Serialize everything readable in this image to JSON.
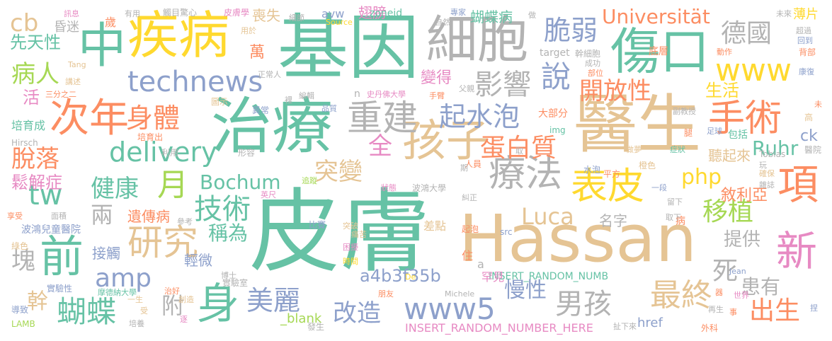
{
  "words": [
    {
      "text": "皮膚",
      "color": "#66c2a5"
    },
    {
      "text": "Hassan",
      "color": "#e5c494"
    },
    {
      "text": "基因",
      "color": "#66c2a5"
    },
    {
      "text": "治療",
      "color": "#66c2a5"
    },
    {
      "text": "醫生",
      "color": "#e5c494"
    },
    {
      "text": "細胞",
      "color": "#b3b3b3"
    },
    {
      "text": "疾病",
      "color": "#ffd92f"
    },
    {
      "text": "傷口",
      "color": "#66c2a5"
    },
    {
      "text": "中",
      "color": "#66c2a5"
    },
    {
      "text": "孩子",
      "color": "#e5c494"
    },
    {
      "text": "重建",
      "color": "#b3b3b3"
    },
    {
      "text": "療法",
      "color": "#b3b3b3"
    },
    {
      "text": "手術",
      "color": "#fc8d62"
    },
    {
      "text": "表皮",
      "color": "#ffd92f"
    },
    {
      "text": "次年",
      "color": "#fc8d62"
    },
    {
      "text": "身",
      "color": "#66c2a5"
    },
    {
      "text": "研究",
      "color": "#e5c494"
    },
    {
      "text": "項",
      "color": "#fc8d62"
    },
    {
      "text": "前",
      "color": "#66c2a5"
    },
    {
      "text": "新",
      "color": "#e78ac3"
    },
    {
      "text": "www",
      "color": "#ffd92f"
    },
    {
      "text": "technews",
      "color": "#8da0cb"
    },
    {
      "text": "delivery",
      "color": "#66c2a5"
    },
    {
      "text": "身體",
      "color": "#fc8d62"
    },
    {
      "text": "最終",
      "color": "#e5c494"
    },
    {
      "text": "起水泡",
      "color": "#8da0cb"
    },
    {
      "text": "蛋白質",
      "color": "#fc8d62"
    },
    {
      "text": "影響",
      "color": "#b3b3b3"
    },
    {
      "text": "說",
      "color": "#8da0cb"
    },
    {
      "text": "脆弱",
      "color": "#8da0cb"
    },
    {
      "text": "德國",
      "color": "#b3b3b3"
    },
    {
      "text": "蝴蝶",
      "color": "#66c2a5"
    },
    {
      "text": "美麗",
      "color": "#8da0cb"
    },
    {
      "text": "www5",
      "color": "#8da0cb"
    },
    {
      "text": "男孩",
      "color": "#b3b3b3"
    },
    {
      "text": "出生",
      "color": "#fc8d62"
    },
    {
      "text": "移植",
      "color": "#a6d854"
    },
    {
      "text": "技術",
      "color": "#66c2a5"
    },
    {
      "text": "月",
      "color": "#a6d854"
    },
    {
      "text": "健康",
      "color": "#66c2a5"
    },
    {
      "text": "病人",
      "color": "#a6d854"
    },
    {
      "text": "脫落",
      "color": "#fc8d62"
    },
    {
      "text": "amp",
      "color": "#8da0cb"
    },
    {
      "text": "改造",
      "color": "#8da0cb"
    },
    {
      "text": "開放性",
      "color": "#fc8d62"
    },
    {
      "text": "Universität",
      "color": "#fc8d62"
    },
    {
      "text": "Bochum",
      "color": "#66c2a5"
    },
    {
      "text": "Luca",
      "color": "#e5c494"
    },
    {
      "text": "php",
      "color": "#ffd92f"
    },
    {
      "text": "突變",
      "color": "#e5c494"
    },
    {
      "text": "Ruhr",
      "color": "#66c2a5"
    },
    {
      "text": "死",
      "color": "#b3b3b3"
    },
    {
      "text": "患有",
      "color": "#b3b3b3"
    },
    {
      "text": "慢性",
      "color": "#8da0cb"
    },
    {
      "text": "tw",
      "color": "#66c2a5"
    },
    {
      "text": "cb",
      "color": "#e5c494"
    },
    {
      "text": "全",
      "color": "#e78ac3"
    },
    {
      "text": "稱為",
      "color": "#66c2a5"
    },
    {
      "text": "附",
      "color": "#b3b3b3"
    },
    {
      "text": "鬆解症",
      "color": "#e78ac3"
    },
    {
      "text": "塊",
      "color": "#b3b3b3"
    },
    {
      "text": "兩",
      "color": "#b3b3b3"
    },
    {
      "text": "生活",
      "color": "#ffd92f"
    },
    {
      "text": "提供",
      "color": "#b3b3b3"
    },
    {
      "text": "先天性",
      "color": "#66c2a5"
    },
    {
      "text": "萬",
      "color": "#fc8d62"
    },
    {
      "text": "a4b3f35b",
      "color": "#8da0cb"
    },
    {
      "text": "蝴蝶病",
      "color": "#66c2a5"
    },
    {
      "text": "翅膀",
      "color": "#e78ac3"
    },
    {
      "text": "喪失",
      "color": "#e5c494"
    },
    {
      "text": "昏迷",
      "color": "#b3b3b3"
    },
    {
      "text": "遺傳病",
      "color": "#fc8d62"
    },
    {
      "text": "名字",
      "color": "#b3b3b3"
    },
    {
      "text": "敘利亞",
      "color": "#fc8d62"
    },
    {
      "text": "聽起來",
      "color": "#e5c494"
    },
    {
      "text": "接觸",
      "color": "#8da0cb"
    },
    {
      "text": "輕微",
      "color": "#8da0cb"
    },
    {
      "text": "幹",
      "color": "#e5c494"
    },
    {
      "text": "活",
      "color": "#e78ac3"
    },
    {
      "text": "變得",
      "color": "#e78ac3"
    },
    {
      "text": "_blank",
      "color": "#a6d854"
    },
    {
      "text": "INSERT_RANDOM_NUMBER_HERE",
      "color": "#e78ac3"
    },
    {
      "text": "INSERT_RANDOM_NUMB",
      "color": "#66c2a5"
    },
    {
      "text": "href",
      "color": "#8da0cb"
    },
    {
      "text": "ck",
      "color": "#8da0cb"
    },
    {
      "text": "罕見",
      "color": "#e78ac3"
    },
    {
      "text": "住",
      "color": "#fc8d62"
    },
    {
      "text": "差點",
      "color": "#e5c494"
    },
    {
      "text": "zoneid",
      "color": "#66c2a5"
    },
    {
      "text": "avw",
      "color": "#8da0cb"
    },
    {
      "text": "薄片",
      "color": "#ffd92f"
    },
    {
      "text": "底層",
      "color": "#fc8d62"
    },
    {
      "text": "大部分",
      "color": "#fc8d62"
    },
    {
      "text": "波鴻兒童醫院",
      "color": "#8da0cb"
    },
    {
      "text": "培育成",
      "color": "#66c2a5"
    },
    {
      "text": "實驗室",
      "color": "#b3b3b3"
    },
    {
      "text": "病",
      "color": "#fc8d62"
    },
    {
      "text": "橙色",
      "color": "#e5c494"
    },
    {
      "text": "Tobias",
      "color": "#b3b3b3"
    },
    {
      "text": "包括",
      "color": "#66c2a5"
    },
    {
      "text": "腿",
      "color": "#fc8d62"
    },
    {
      "text": "歲",
      "color": "#fc8d62"
    },
    {
      "text": "幹細胞",
      "color": "#b3b3b3"
    },
    {
      "text": "target",
      "color": "#b3b3b3"
    },
    {
      "text": "水泡",
      "color": "#8da0cb"
    },
    {
      "text": "人員",
      "color": "#fc8d62"
    },
    {
      "text": "img",
      "color": "#66c2a5"
    },
    {
      "text": "波鴻大學",
      "color": "#b3b3b3"
    },
    {
      "text": "三分之二",
      "color": "#fc8d62"
    },
    {
      "text": "史丹佛大學",
      "color": "#e78ac3"
    },
    {
      "text": "培育出",
      "color": "#fc8d62"
    },
    {
      "text": "利用",
      "color": "#b3b3b3"
    },
    {
      "text": "異常",
      "color": "#8da0cb"
    },
    {
      "text": "n",
      "color": "#b3b3b3"
    },
    {
      "text": "a",
      "color": "#b3b3b3"
    },
    {
      "text": "src",
      "color": "#8da0cb"
    },
    {
      "text": "實驗性",
      "color": "#8da0cb"
    },
    {
      "text": "摩德納大學",
      "color": "#66c2a5"
    },
    {
      "text": "導致",
      "color": "#8da0cb"
    },
    {
      "text": "LAMB",
      "color": "#a6d854"
    },
    {
      "text": "綠色",
      "color": "#e5c494"
    },
    {
      "text": "享受",
      "color": "#fc8d62"
    },
    {
      "text": "面積",
      "color": "#b3b3b3"
    },
    {
      "text": "Hirsch",
      "color": "#b3b3b3"
    },
    {
      "text": "圖示",
      "color": "#e5c494"
    },
    {
      "text": "形容",
      "color": "#b3b3b3"
    },
    {
      "text": "追蹤",
      "color": "#a6d854"
    },
    {
      "text": "英尺",
      "color": "#e78ac3"
    },
    {
      "text": "參考",
      "color": "#b3b3b3"
    },
    {
      "text": "比賽",
      "color": "#8da0cb"
    },
    {
      "text": "突破",
      "color": "#e5c494"
    },
    {
      "text": "痛苦",
      "color": "#e5c494"
    },
    {
      "text": "困擾",
      "color": "#e78ac3"
    },
    {
      "text": "時間",
      "color": "#ffd92f"
    },
    {
      "text": "狀態",
      "color": "#e78ac3"
    },
    {
      "text": "糾正",
      "color": "#b3b3b3"
    },
    {
      "text": "起泡",
      "color": "#fc8d62"
    },
    {
      "text": "期",
      "color": "#b3b3b3"
    },
    {
      "text": "取",
      "color": "#b3b3b3"
    },
    {
      "text": "平方",
      "color": "#fc8d62"
    },
    {
      "text": "做夢",
      "color": "#e5c494"
    },
    {
      "text": "症狀",
      "color": "#66c2a5"
    },
    {
      "text": "玩",
      "color": "#b3b3b3"
    },
    {
      "text": "確保",
      "color": "#e5c494"
    },
    {
      "text": "雜誌",
      "color": "#b3b3b3"
    },
    {
      "text": "醫院",
      "color": "#b3b3b3"
    },
    {
      "text": "足球",
      "color": "#8da0cb"
    },
    {
      "text": "副教授",
      "color": "#b3b3b3"
    },
    {
      "text": "高",
      "color": "#e5c494"
    },
    {
      "text": "未",
      "color": "#fc8d62"
    },
    {
      "text": "康復",
      "color": "#8da0cb"
    },
    {
      "text": "背部",
      "color": "#fc8d62"
    },
    {
      "text": "回到",
      "color": "#8da0cb"
    },
    {
      "text": "超過",
      "color": "#b3b3b3"
    },
    {
      "text": "未來",
      "color": "#b3b3b3"
    },
    {
      "text": "動作",
      "color": "#fc8d62"
    },
    {
      "text": "部位",
      "color": "#fc8d62"
    },
    {
      "text": "成功",
      "color": "#b3b3b3"
    },
    {
      "text": "手臂",
      "color": "#fc8d62"
    },
    {
      "text": "父親",
      "color": "#b3b3b3"
    },
    {
      "text": "品質",
      "color": "#8da0cb"
    },
    {
      "text": "編輯",
      "color": "#b3b3b3"
    },
    {
      "text": "裡",
      "color": "#b3b3b3"
    },
    {
      "text": "正常人",
      "color": "#b3b3b3"
    },
    {
      "text": "講述",
      "color": "#e5c494"
    },
    {
      "text": "Tang",
      "color": "#e5c494"
    },
    {
      "text": "用於",
      "color": "#e5c494"
    },
    {
      "text": "有用",
      "color": "#b3b3b3"
    },
    {
      "text": "訊息",
      "color": "#e78ac3"
    },
    {
      "text": "觸目驚心",
      "color": "#b3b3b3"
    },
    {
      "text": "皮膚學",
      "color": "#e78ac3"
    },
    {
      "text": "細節",
      "color": "#b3b3b3"
    },
    {
      "text": "Source",
      "color": "#ffd92f"
    },
    {
      "text": "自然",
      "color": "#b3b3b3"
    },
    {
      "text": "專家",
      "color": "#8da0cb"
    },
    {
      "text": "做",
      "color": "#b3b3b3"
    },
    {
      "text": "一段",
      "color": "#8da0cb"
    },
    {
      "text": "留下",
      "color": "#b3b3b3"
    },
    {
      "text": "取下",
      "color": "#b3b3b3"
    },
    {
      "text": "Jean",
      "color": "#8da0cb"
    },
    {
      "text": "世界",
      "color": "#e78ac3"
    },
    {
      "text": "事",
      "color": "#fc8d62"
    },
    {
      "text": "再生",
      "color": "#b3b3b3"
    },
    {
      "text": "外科",
      "color": "#fc8d62"
    },
    {
      "text": "扯下來",
      "color": "#b3b3b3"
    },
    {
      "text": "器",
      "color": "#fc8d62"
    },
    {
      "text": "捏",
      "color": "#8da0cb"
    },
    {
      "text": "Michele",
      "color": "#b3b3b3"
    },
    {
      "text": "朋友",
      "color": "#fc8d62"
    },
    {
      "text": "De",
      "color": "#ffd92f"
    },
    {
      "text": "發生",
      "color": "#b3b3b3"
    },
    {
      "text": "博士",
      "color": "#b3b3b3"
    },
    {
      "text": "治好",
      "color": "#fc8d62"
    },
    {
      "text": "創造",
      "color": "#e5c494"
    },
    {
      "text": "一生",
      "color": "#e5c494"
    },
    {
      "text": "受",
      "color": "#e5c494"
    },
    {
      "text": "培養",
      "color": "#b3b3b3"
    },
    {
      "text": "逐",
      "color": "#e78ac3"
    }
  ]
}
